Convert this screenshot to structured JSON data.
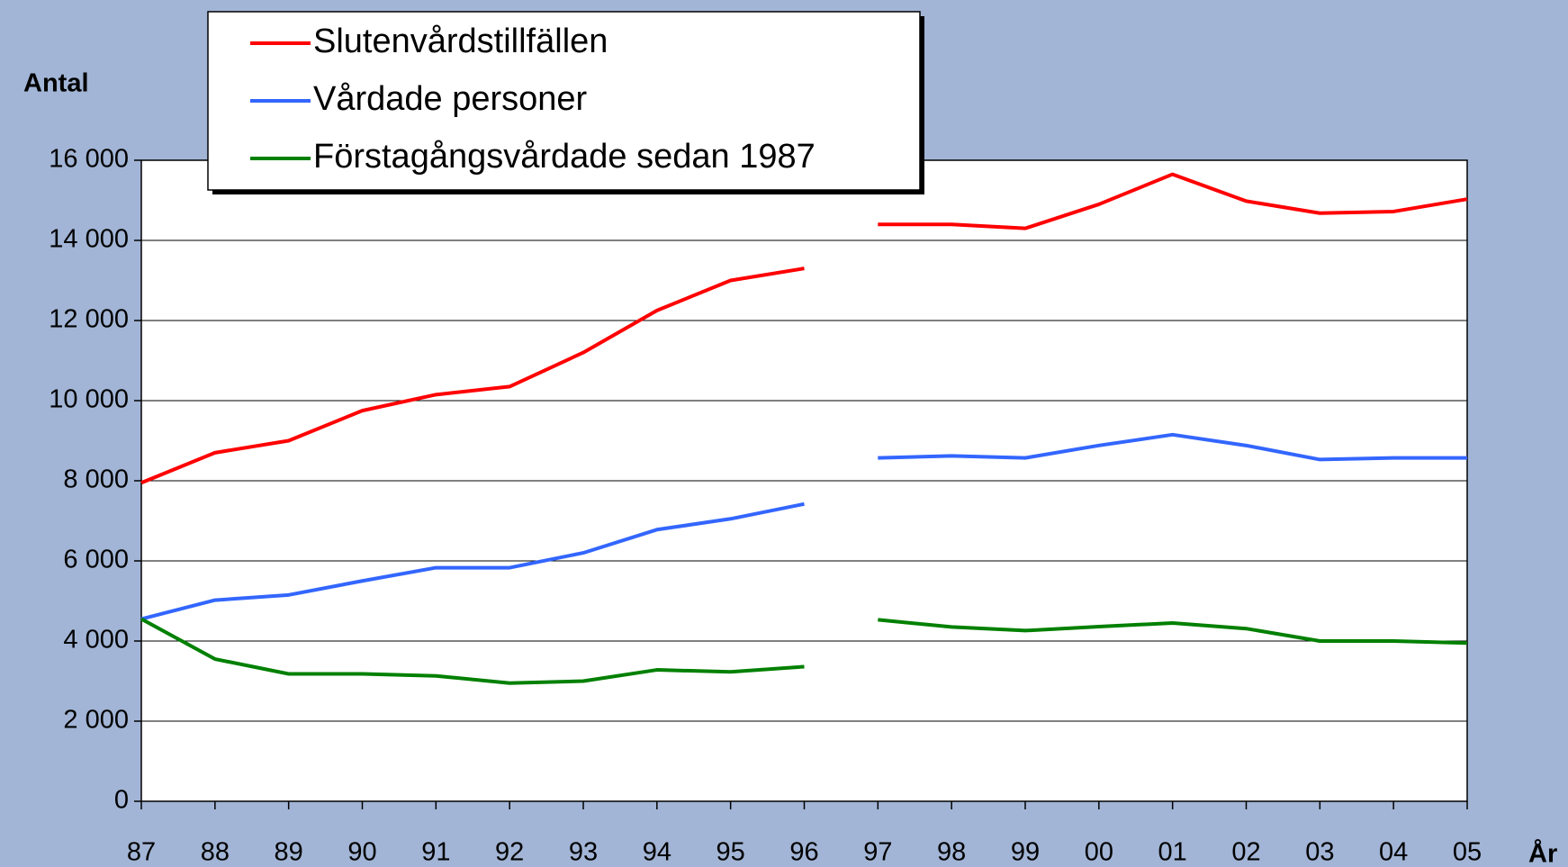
{
  "chart_data": {
    "type": "line",
    "y_label": "Antal",
    "x_label": "År",
    "categories": [
      "87",
      "88",
      "89",
      "90",
      "91",
      "92",
      "93",
      "94",
      "95",
      "96",
      "97",
      "98",
      "99",
      "00",
      "01",
      "02",
      "03",
      "04",
      "05"
    ],
    "line_break_after": "96",
    "series": [
      {
        "name": "Slutenvårdstillfällen",
        "color": "#ff0000",
        "values": [
          7950,
          8700,
          9000,
          9750,
          10150,
          10350,
          11200,
          12250,
          13000,
          13300,
          14400,
          14400,
          14300,
          14900,
          15650,
          14980,
          14680,
          14720,
          15030
        ]
      },
      {
        "name": "Vårdade personer",
        "color": "#3366ff",
        "values": [
          4550,
          5020,
          5150,
          5500,
          5830,
          5830,
          6200,
          6780,
          7050,
          7420,
          8570,
          8620,
          8570,
          8880,
          9150,
          8880,
          8530,
          8570,
          8570
        ]
      },
      {
        "name": "Förstagångsvårdade sedan 1987",
        "color": "#008000",
        "values": [
          4550,
          3550,
          3180,
          3180,
          3130,
          2950,
          3000,
          3280,
          3230,
          3360,
          4530,
          4350,
          4260,
          4360,
          4450,
          4310,
          4000,
          4000,
          3950
        ]
      }
    ],
    "ylim": [
      0,
      16000
    ],
    "yticks": [
      0,
      {
        "value": 2000,
        "label": "2 000"
      },
      {
        "value": 4000,
        "label": "4 000"
      },
      {
        "value": 6000,
        "label": "6 000"
      },
      {
        "value": 8000,
        "label": "8 000"
      },
      {
        "value": 10000,
        "label": "10 000"
      },
      {
        "value": 12000,
        "label": "12 000"
      },
      {
        "value": 14000,
        "label": "14 000"
      },
      {
        "value": 16000,
        "label": "16 000"
      }
    ],
    "grid": true
  }
}
